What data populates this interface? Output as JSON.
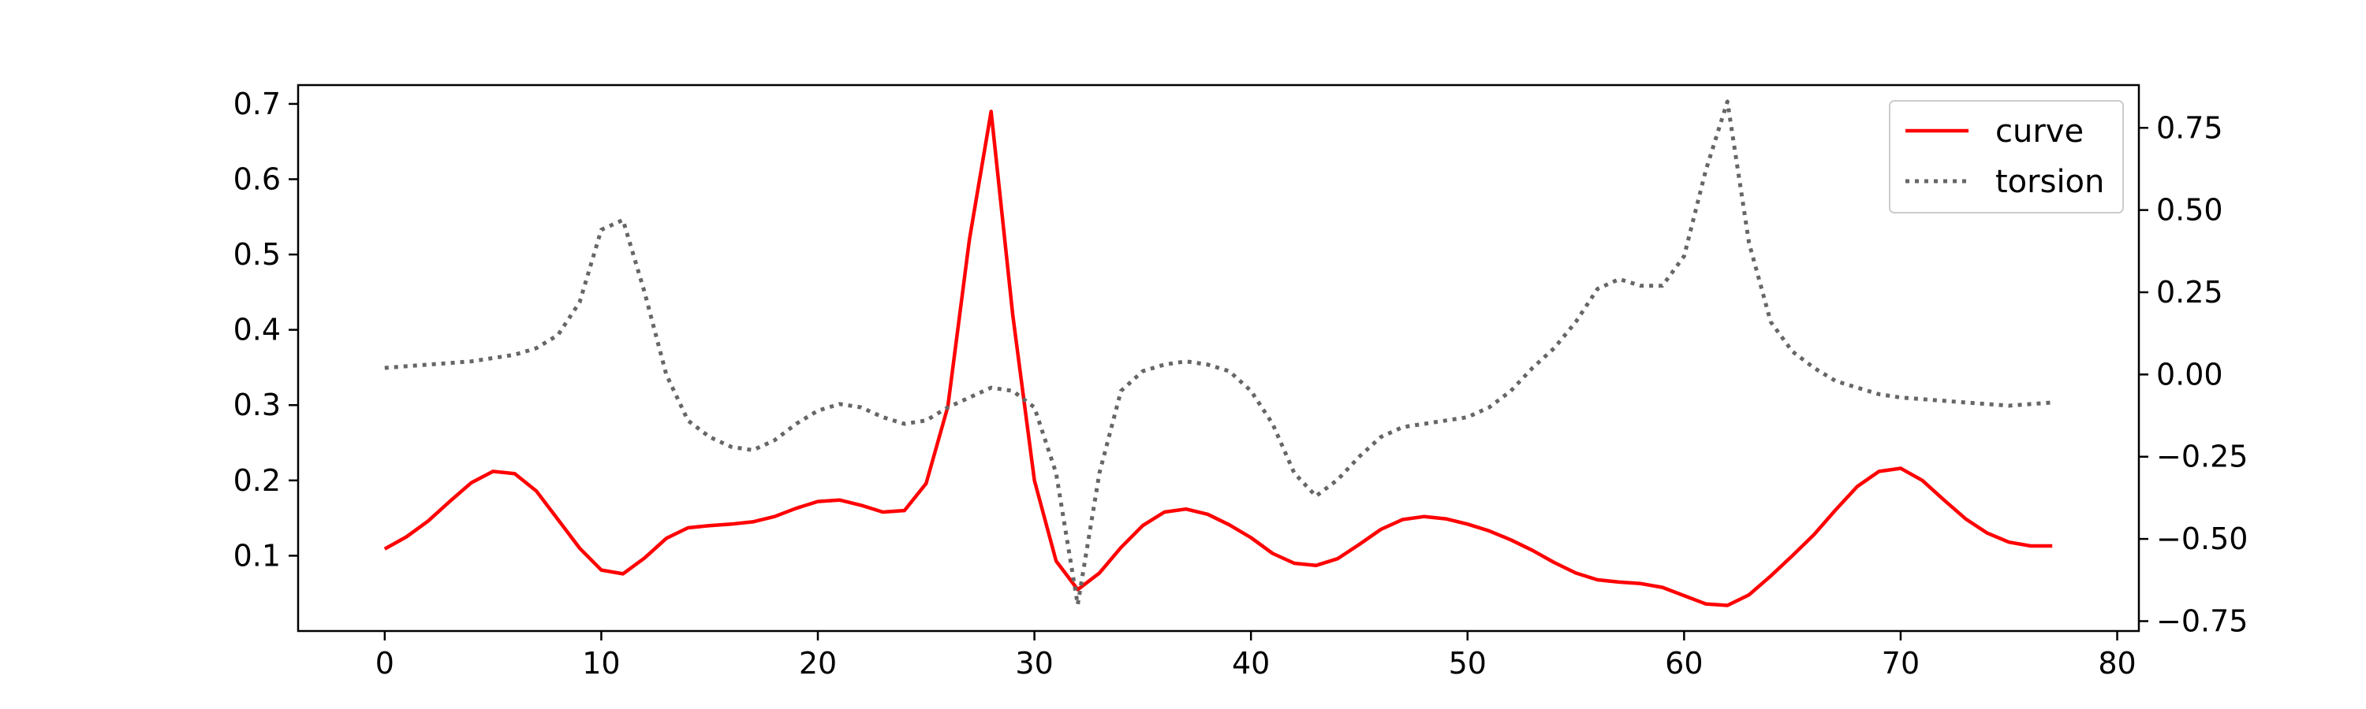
{
  "chart_data": {
    "type": "line",
    "title": "",
    "xlabel": "",
    "ylabel": "",
    "y2label": "",
    "xlim": [
      -4,
      81
    ],
    "ylim": [
      0.0,
      0.725
    ],
    "y2lim": [
      -0.78,
      0.88
    ],
    "x_ticks": [
      0,
      10,
      20,
      30,
      40,
      50,
      60,
      70,
      80
    ],
    "y_ticks": [
      0.1,
      0.2,
      0.3,
      0.4,
      0.5,
      0.6,
      0.7
    ],
    "y2_ticks": [
      -0.75,
      -0.5,
      -0.25,
      0.0,
      0.25,
      0.5,
      0.75
    ],
    "x_tick_labels": [
      "0",
      "10",
      "20",
      "30",
      "40",
      "50",
      "60",
      "70",
      "80"
    ],
    "y_tick_labels": [
      "0.1",
      "0.2",
      "0.3",
      "0.4",
      "0.5",
      "0.6",
      "0.7"
    ],
    "y2_tick_labels": [
      "−0.75",
      "−0.50",
      "−0.25",
      "0.00",
      "0.25",
      "0.50",
      "0.75"
    ],
    "legend_position": "top-right",
    "grid": false,
    "x": [
      0,
      1,
      2,
      3,
      4,
      5,
      6,
      7,
      8,
      9,
      10,
      11,
      12,
      13,
      14,
      15,
      16,
      17,
      18,
      19,
      20,
      21,
      22,
      23,
      24,
      25,
      26,
      27,
      28,
      29,
      30,
      31,
      32,
      33,
      34,
      35,
      36,
      37,
      38,
      39,
      40,
      41,
      42,
      43,
      44,
      45,
      46,
      47,
      48,
      49,
      50,
      51,
      52,
      53,
      54,
      55,
      56,
      57,
      58,
      59,
      60,
      61,
      62,
      63,
      64,
      65,
      66,
      67,
      68,
      69,
      70,
      71,
      72,
      73,
      74,
      75,
      76,
      77
    ],
    "series": [
      {
        "name": "curve",
        "axis": "left",
        "color": "#ff0000",
        "style": "solid",
        "values": [
          0.109,
          0.125,
          0.146,
          0.172,
          0.197,
          0.212,
          0.209,
          0.186,
          0.148,
          0.11,
          0.081,
          0.076,
          0.097,
          0.123,
          0.137,
          0.14,
          0.142,
          0.145,
          0.152,
          0.163,
          0.172,
          0.174,
          0.167,
          0.158,
          0.16,
          0.196,
          0.298,
          0.52,
          0.69,
          0.42,
          0.2,
          0.093,
          0.055,
          0.077,
          0.111,
          0.14,
          0.158,
          0.162,
          0.155,
          0.141,
          0.124,
          0.103,
          0.09,
          0.087,
          0.096,
          0.115,
          0.135,
          0.148,
          0.152,
          0.149,
          0.142,
          0.133,
          0.121,
          0.107,
          0.091,
          0.077,
          0.068,
          0.065,
          0.063,
          0.058,
          0.047,
          0.036,
          0.034,
          0.048,
          0.073,
          0.1,
          0.128,
          0.161,
          0.192,
          0.212,
          0.216,
          0.2,
          0.174,
          0.149,
          0.13,
          0.118,
          0.113,
          0.113
        ]
      },
      {
        "name": "torsion",
        "axis": "right",
        "color": "#666666",
        "style": "dotted",
        "values": [
          0.02,
          0.025,
          0.03,
          0.035,
          0.04,
          0.05,
          0.06,
          0.08,
          0.12,
          0.22,
          0.44,
          0.47,
          0.25,
          0.0,
          -0.14,
          -0.19,
          -0.22,
          -0.23,
          -0.2,
          -0.15,
          -0.11,
          -0.09,
          -0.1,
          -0.13,
          -0.15,
          -0.14,
          -0.1,
          -0.07,
          -0.04,
          -0.05,
          -0.1,
          -0.3,
          -0.7,
          -0.3,
          -0.05,
          0.01,
          0.03,
          0.04,
          0.03,
          0.01,
          -0.05,
          -0.15,
          -0.3,
          -0.37,
          -0.32,
          -0.25,
          -0.19,
          -0.16,
          -0.15,
          -0.14,
          -0.13,
          -0.1,
          -0.05,
          0.02,
          0.08,
          0.16,
          0.26,
          0.29,
          0.27,
          0.27,
          0.36,
          0.62,
          0.83,
          0.4,
          0.16,
          0.07,
          0.02,
          -0.02,
          -0.04,
          -0.06,
          -0.07,
          -0.075,
          -0.08,
          -0.085,
          -0.09,
          -0.095,
          -0.09,
          -0.085
        ]
      }
    ]
  }
}
